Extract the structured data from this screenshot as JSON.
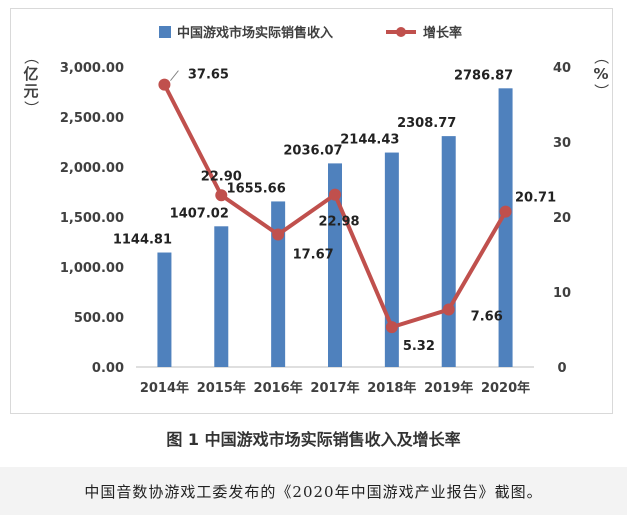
{
  "chart_data": {
    "type": "bar",
    "categories": [
      "2014年",
      "2015年",
      "2016年",
      "2017年",
      "2018年",
      "2019年",
      "2020年"
    ],
    "series": [
      {
        "name": "中国游戏市场实际销售收入",
        "chart_type": "bar",
        "axis": "left",
        "values": [
          1144.81,
          1407.02,
          1655.66,
          2036.07,
          2144.43,
          2308.77,
          2786.87
        ],
        "labels": [
          "1144.81",
          "1407.02",
          "1655.66",
          "2036.07",
          "2144.43",
          "2308.77",
          "2786.87"
        ],
        "color": "#4f81bd"
      },
      {
        "name": "增长率",
        "chart_type": "line",
        "axis": "right",
        "values": [
          37.65,
          22.9,
          17.67,
          22.98,
          5.32,
          7.66,
          20.71
        ],
        "labels": [
          "37.65",
          "22.90",
          "17.67",
          "22.98",
          "5.32",
          "7.66",
          "20.71"
        ],
        "color": "#c0504d"
      }
    ],
    "ylim": [
      0,
      3000
    ],
    "yticks": [
      "0.00",
      "500.00",
      "1,000.00",
      "1,500.00",
      "2,000.00",
      "2,500.00",
      "3,000.00"
    ],
    "ylabel": "（亿元）",
    "y2lim": [
      0,
      40
    ],
    "y2ticks": [
      "0",
      "10",
      "20",
      "30",
      "40"
    ],
    "y2label": "（%）",
    "grid": false,
    "legend": "top-center"
  },
  "caption": "图 1  中国游戏市场实际销售收入及增长率",
  "source_note": "中国音数协游戏工委发布的《2020年中国游戏产业报告》截图。"
}
